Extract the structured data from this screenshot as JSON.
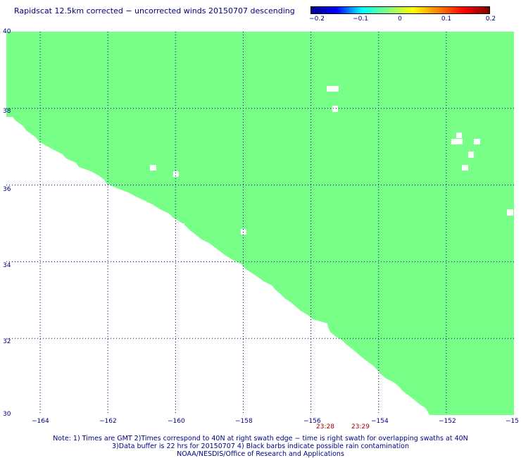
{
  "title": "Rapidscat 12.5km corrected − uncorrected winds 20150707 descending",
  "colorbar": {
    "labels": [
      "−0.2",
      "−0.1",
      "0",
      "0.1",
      "0.2"
    ],
    "values": [
      -0.2,
      -0.1,
      0,
      0.1,
      0.2
    ],
    "colors": [
      "#00008f",
      "#0000ff",
      "#00ffff",
      "#80ff80",
      "#ffff00",
      "#ff8000",
      "#ff0000",
      "#800000"
    ]
  },
  "map": {
    "lon_range": [
      -165,
      -150
    ],
    "lat_range": [
      30,
      40
    ],
    "swath_color": "#77ff88",
    "grid_color": "#000080",
    "lat_labels": [
      "40",
      "38",
      "36",
      "34",
      "32",
      "30"
    ],
    "lon_labels": [
      "−164",
      "−162",
      "−160",
      "−158",
      "−156",
      "−154",
      "−152",
      "−15"
    ]
  },
  "times": [
    "23:28",
    "23:29"
  ],
  "notes": [
    "Note: 1) Times are GMT 2)Times correspond to 40N at right swath edge − time is right swath for overlapping swaths at 40N",
    "3)Data buffer is 22 hrs for 20150707 4) Black barbs indicate possible rain contamination",
    "NOAA/NESDIS/Office of Research and Applications"
  ]
}
